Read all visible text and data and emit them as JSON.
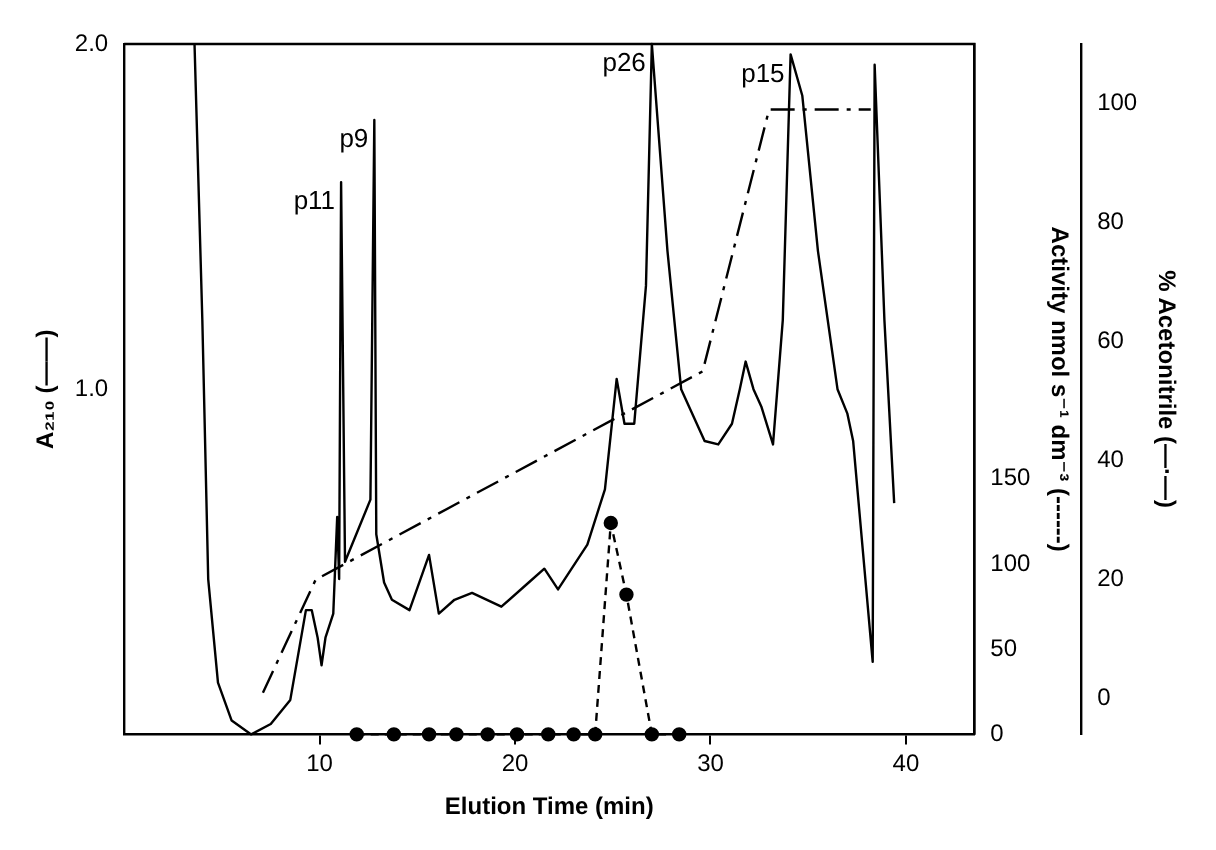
{
  "chart_data": {
    "type": "line",
    "xlabel": "Elution Time (min)",
    "ylabel": "A₂₁₀ (——)",
    "y2label": "Activity nmol s⁻¹ dm⁻³ (------)",
    "y3label": "% Acetonitrile (—·—)",
    "xlim": [
      0,
      43.5
    ],
    "xticks": [
      10,
      20,
      30,
      40
    ],
    "ylim": [
      0,
      2
    ],
    "yticks": [
      {
        "value": 1,
        "label": "1.0"
      },
      {
        "value": 2,
        "label": "2.0"
      }
    ],
    "y2lim": [
      0,
      405
    ],
    "y2ticks": [
      0,
      50,
      100,
      150
    ],
    "y3lim": [
      -6,
      110
    ],
    "y3ticks": [
      0,
      20,
      40,
      60,
      80,
      100
    ],
    "grid": false,
    "legend": false,
    "series": [
      {
        "color": "#000000",
        "marker": "none",
        "line_style": "solid",
        "x": [
          3.6,
          4.0,
          4.3,
          4.8,
          5.5,
          6.5,
          7.5,
          8.5,
          9.3,
          9.6,
          9.9,
          10.1,
          10.3,
          10.7,
          10.9,
          11.0,
          11.1,
          11.3,
          12.6,
          12.8,
          12.9,
          13.3,
          13.7,
          14.6,
          15.6,
          16.1,
          16.9,
          17.8,
          19.3,
          20.7,
          21.5,
          22.2,
          23.7,
          24.6,
          25.2,
          25.6,
          26.1,
          26.7,
          27.0,
          27.8,
          28.5,
          29.7,
          30.4,
          31.1,
          31.5,
          31.8,
          32.2,
          32.6,
          33.2,
          33.7,
          34.1,
          34.7,
          35.5,
          36.5,
          37.0,
          37.3,
          38.3,
          38.4,
          38.9,
          39.4
        ],
        "values": [
          2.0,
          1.2,
          0.45,
          0.15,
          0.04,
          0.0,
          0.03,
          0.1,
          0.36,
          0.36,
          0.28,
          0.2,
          0.28,
          0.35,
          0.63,
          0.45,
          1.6,
          0.5,
          0.68,
          1.78,
          0.58,
          0.44,
          0.39,
          0.36,
          0.52,
          0.35,
          0.39,
          0.41,
          0.37,
          0.44,
          0.48,
          0.42,
          0.55,
          0.71,
          1.03,
          0.9,
          0.9,
          1.3,
          2.0,
          1.4,
          1.0,
          0.85,
          0.84,
          0.9,
          1.0,
          1.08,
          1.0,
          0.95,
          0.84,
          1.2,
          1.97,
          1.85,
          1.4,
          1.0,
          0.93,
          0.85,
          0.21,
          1.94,
          1.2,
          0.67
        ]
      },
      {
        "axis": "y2",
        "color": "#000000",
        "marker": "circle",
        "line_style": "dashed",
        "x": [
          11.9,
          13.8,
          15.6,
          17.0,
          18.6,
          20.1,
          21.7,
          23.0,
          24.1,
          24.9,
          25.7,
          27.0,
          28.4
        ],
        "values": [
          0,
          0,
          0,
          0,
          0,
          0,
          0,
          0,
          0,
          124,
          82,
          0,
          0
        ]
      },
      {
        "axis": "y3",
        "color": "#000000",
        "marker": "none",
        "line_style": "dashdot",
        "x": [
          7.1,
          9.8,
          29.6,
          33.0,
          38.2
        ],
        "values": [
          1,
          20,
          55,
          99,
          99
        ]
      }
    ],
    "annotations": [
      {
        "text": "p11",
        "x": 11.1,
        "y": 1.6
      },
      {
        "text": "p9",
        "x": 12.8,
        "y": 1.78
      },
      {
        "text": "p26",
        "x": 27.0,
        "y": 2.0
      },
      {
        "text": "p15",
        "x": 34.1,
        "y": 1.97
      }
    ]
  }
}
